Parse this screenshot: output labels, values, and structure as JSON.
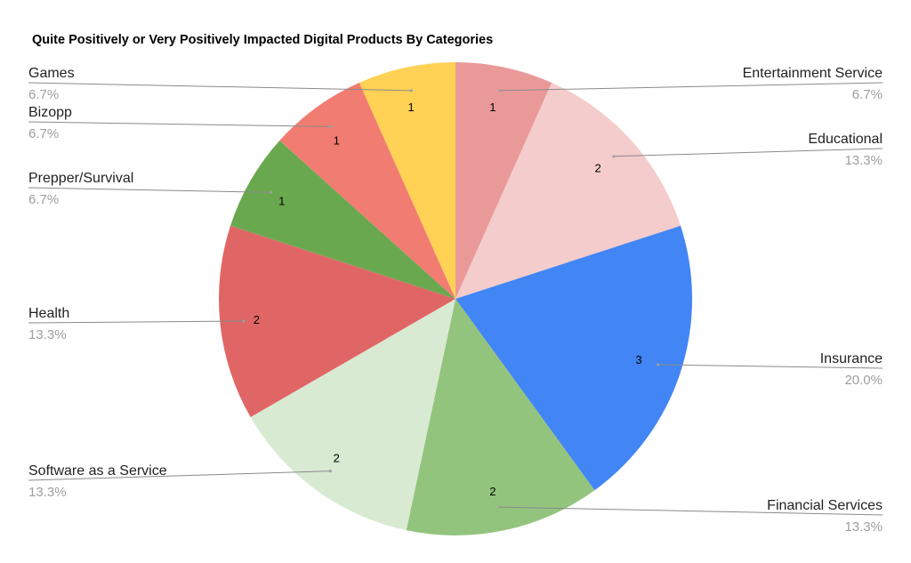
{
  "chart_data": {
    "type": "pie",
    "title": "Quite Positively or Very Positively Impacted Digital Products By Categories",
    "slices": [
      {
        "label": "Entertainment Service",
        "value": 1,
        "percent": "6.7%",
        "color": "#ea9999"
      },
      {
        "label": "Educational",
        "value": 2,
        "percent": "13.3%",
        "color": "#f4cccc"
      },
      {
        "label": "Insurance",
        "value": 3,
        "percent": "20.0%",
        "color": "#4285f4"
      },
      {
        "label": "Financial Services",
        "value": 2,
        "percent": "13.3%",
        "color": "#93c47d"
      },
      {
        "label": "Software as a Service",
        "value": 2,
        "percent": "13.3%",
        "color": "#d9ead3"
      },
      {
        "label": "Health",
        "value": 2,
        "percent": "13.3%",
        "color": "#e06666"
      },
      {
        "label": "Prepper/Survival",
        "value": 1,
        "percent": "6.7%",
        "color": "#6aa84f"
      },
      {
        "label": "Bizopp",
        "value": 1,
        "percent": "6.7%",
        "color": "#f17c71"
      },
      {
        "label": "Games",
        "value": 1,
        "percent": "6.7%",
        "color": "#ffd154"
      }
    ],
    "start_angle": "12 o'clock",
    "direction": "clockwise",
    "legend": "none"
  }
}
